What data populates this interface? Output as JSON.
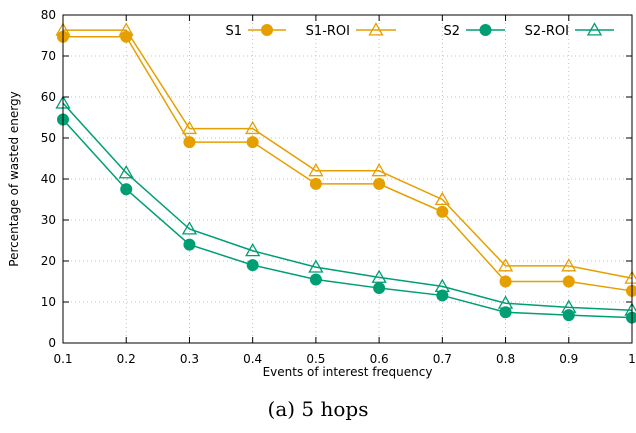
{
  "chart_data": {
    "type": "line",
    "caption": "(a) 5 hops",
    "xlabel": "Events of interest frequency",
    "ylabel": "Percentage of wasted energy",
    "x": [
      0.1,
      0.2,
      0.3,
      0.4,
      0.5,
      0.6,
      0.7,
      0.8,
      0.9,
      1
    ],
    "xticks": [
      "0.1",
      "0.2",
      "0.3",
      "0.4",
      "0.5",
      "0.6",
      "0.7",
      "0.8",
      "0.9",
      "1"
    ],
    "yticks": [
      "0",
      "10",
      "20",
      "30",
      "40",
      "50",
      "60",
      "70",
      "80"
    ],
    "xlim": [
      0.1,
      1
    ],
    "ylim": [
      0,
      80
    ],
    "grid": true,
    "legend_position": "top",
    "series": [
      {
        "name": "S1",
        "color": "#E69F00",
        "marker": "circle",
        "values": [
          74.7,
          74.7,
          49,
          49,
          38.8,
          38.8,
          32,
          15,
          15,
          12.7
        ]
      },
      {
        "name": "S1-ROI",
        "color": "#E69F00",
        "marker": "triangle",
        "values": [
          76.3,
          76.3,
          52.3,
          52.3,
          42,
          42,
          35,
          18.8,
          18.8,
          15.8
        ]
      },
      {
        "name": "S2",
        "color": "#009E73",
        "marker": "circle",
        "values": [
          54.5,
          37.5,
          24,
          19,
          15.5,
          13.4,
          11.6,
          7.5,
          6.8,
          6.2
        ]
      },
      {
        "name": "S2-ROI",
        "color": "#009E73",
        "marker": "triangle",
        "values": [
          58.5,
          41.5,
          27.8,
          22.5,
          18.5,
          16,
          13.8,
          9.7,
          8.7,
          8
        ]
      }
    ]
  }
}
